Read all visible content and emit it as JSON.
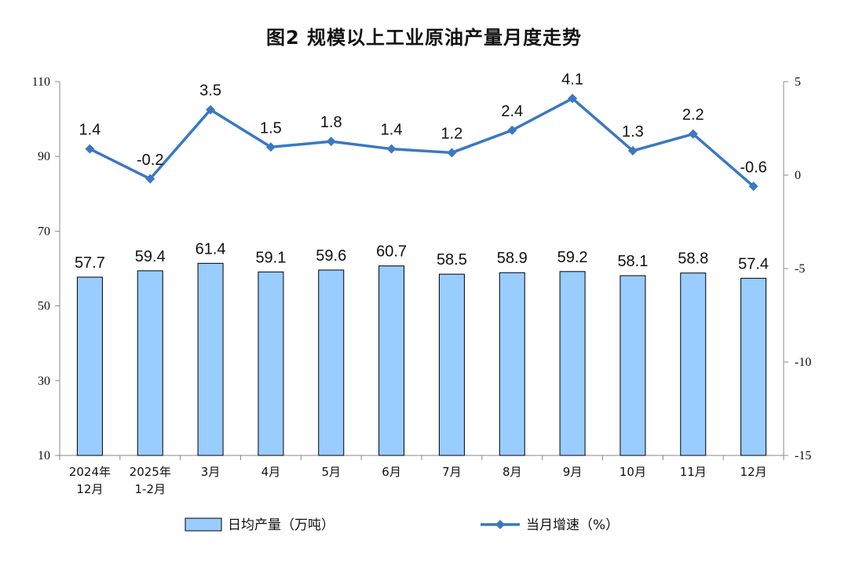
{
  "chart_data": {
    "type": "bar",
    "title": "图2  规模以上工业原油产量月度走势",
    "categories": [
      [
        "2024年",
        "12月"
      ],
      [
        "2025年",
        "1-2月"
      ],
      [
        "3月"
      ],
      [
        "4月"
      ],
      [
        "5月"
      ],
      [
        "6月"
      ],
      [
        "7月"
      ],
      [
        "8月"
      ],
      [
        "9月"
      ],
      [
        "10月"
      ],
      [
        "11月"
      ],
      [
        "12月"
      ]
    ],
    "series": [
      {
        "name": "日均产量（万吨）",
        "type": "bar",
        "axis": "left",
        "color": "#99CCFF",
        "values": [
          57.7,
          59.4,
          61.4,
          59.1,
          59.6,
          60.7,
          58.5,
          58.9,
          59.2,
          58.1,
          58.8,
          57.4
        ]
      },
      {
        "name": "当月增速（%）",
        "type": "line",
        "axis": "right",
        "color": "#3A78C2",
        "values": [
          1.4,
          -0.2,
          3.5,
          1.5,
          1.8,
          1.4,
          1.2,
          2.4,
          4.1,
          1.3,
          2.2,
          -0.6
        ]
      }
    ],
    "y_left": {
      "min": 10,
      "max": 110,
      "ticks": [
        10,
        30,
        50,
        70,
        90,
        110
      ]
    },
    "y_right": {
      "min": -15,
      "max": 5,
      "ticks": [
        -15,
        -10,
        -5,
        0,
        5
      ]
    },
    "legend": {
      "position": "bottom"
    },
    "grid": false
  }
}
